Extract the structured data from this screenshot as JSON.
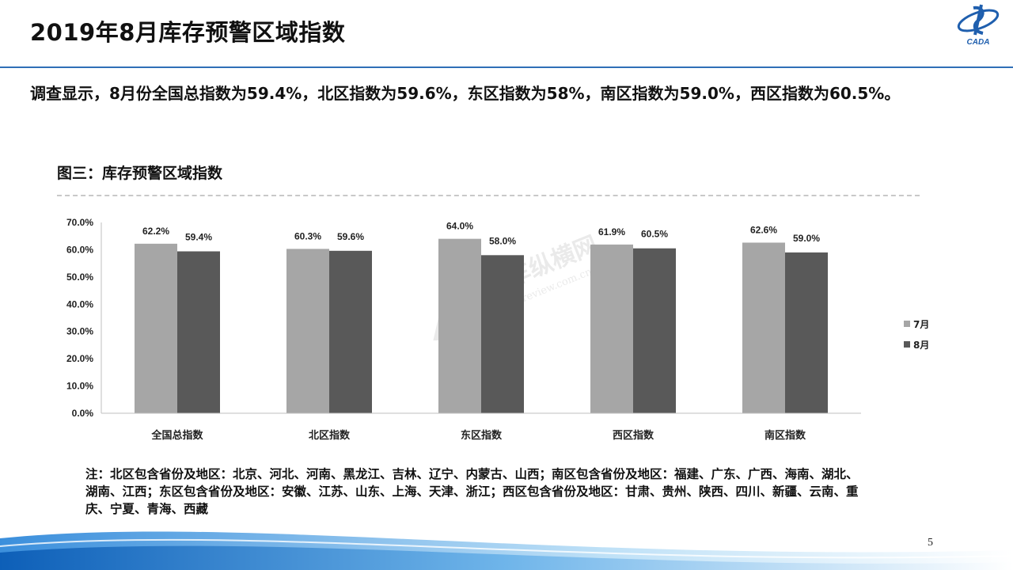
{
  "header": {
    "title": "2019年8月库存预警区域指数",
    "logo_text": "CADA"
  },
  "intro_text": "调查显示，8月份全国总指数为59.4%，北区指数为59.6%，东区指数为58%，南区指数为59.0%，西区指数为60.5%。",
  "chart_heading": "图三：库存预警区域指数",
  "colors": {
    "title_rule": "#2f6fb7",
    "series_jul": "#a6a6a6",
    "series_aug": "#595959"
  },
  "chart_data": {
    "type": "bar",
    "title": "",
    "categories": [
      "全国总指数",
      "北区指数",
      "东区指数",
      "西区指数",
      "南区指数"
    ],
    "series": [
      {
        "name": "7月",
        "values": [
          62.2,
          60.3,
          64.0,
          61.9,
          62.6
        ],
        "labels": [
          "62.2%",
          "60.3%",
          "64.0%",
          "61.9%",
          "62.6%"
        ]
      },
      {
        "name": "8月",
        "values": [
          59.4,
          59.6,
          58.0,
          60.5,
          59.0
        ],
        "labels": [
          "59.4%",
          "59.6%",
          "58.0%",
          "60.5%",
          "59.0%"
        ]
      }
    ],
    "ylim": [
      0,
      70
    ],
    "yticks": [
      "0.0%",
      "10.0%",
      "20.0%",
      "30.0%",
      "40.0%",
      "50.0%",
      "60.0%",
      "70.0%"
    ],
    "xlabel": "",
    "ylabel": "",
    "grid": false,
    "legend_position": "right"
  },
  "watermark": {
    "brand": "汽车纵横网",
    "url": "autoreview.com.cn"
  },
  "footnote": "注：北区包含省份及地区：北京、河北、河南、黑龙江、吉林、辽宁、内蒙古、山西；南区包含省份及地区：福建、广东、广西、海南、湖北、湖南、江西；东区包含省份及地区：安徽、江苏、山东、上海、天津、浙江；西区包含省份及地区：甘肃、贵州、陕西、四川、新疆、云南、重庆、宁夏、青海、西藏",
  "page_number": "5"
}
